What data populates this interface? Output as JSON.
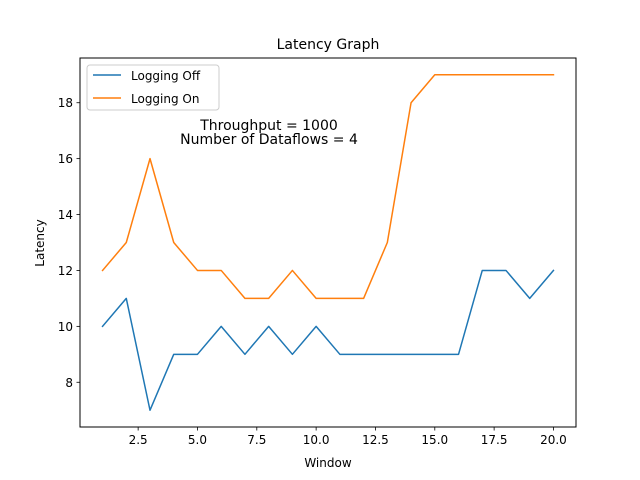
{
  "chart_data": {
    "type": "line",
    "title": "Latency Graph",
    "xlabel": "Window",
    "ylabel": "Latency",
    "xlim": [
      0.05,
      20.95
    ],
    "ylim": [
      6.4,
      19.6
    ],
    "xticks": [
      2.5,
      5.0,
      7.5,
      10.0,
      12.5,
      15.0,
      17.5,
      20.0
    ],
    "xtick_labels": [
      "2.5",
      "5.0",
      "7.5",
      "10.0",
      "12.5",
      "15.0",
      "17.5",
      "20.0"
    ],
    "yticks": [
      8,
      10,
      12,
      14,
      16,
      18
    ],
    "ytick_labels": [
      "8",
      "10",
      "12",
      "14",
      "16",
      "18"
    ],
    "grid": false,
    "legend_position": "top-left",
    "x": [
      1,
      2,
      3,
      4,
      5,
      6,
      7,
      8,
      9,
      10,
      11,
      12,
      13,
      14,
      15,
      16,
      17,
      18,
      19,
      20
    ],
    "series": [
      {
        "name": "Logging Off",
        "color": "#1f77b4",
        "values": [
          10,
          11,
          7,
          9,
          9,
          10,
          9,
          10,
          9,
          10,
          9,
          9,
          9,
          9,
          9,
          9,
          12,
          12,
          11,
          12
        ]
      },
      {
        "name": "Logging On",
        "color": "#ff7f0e",
        "values": [
          12,
          13,
          16,
          13,
          12,
          12,
          11,
          11,
          12,
          11,
          11,
          11,
          13,
          18,
          19,
          19,
          19,
          19,
          19,
          19
        ]
      }
    ],
    "annotations": [
      "Throughput = 1000",
      "Number of Dataflows = 4"
    ]
  }
}
